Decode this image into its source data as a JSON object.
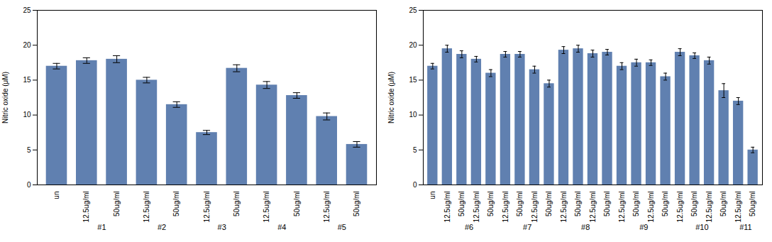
{
  "chart_data": [
    {
      "type": "bar",
      "categories": [
        "un",
        "12.5ug/ml",
        "50ug/ml",
        "12.5ug/ml",
        "50ug/ml",
        "12.5ug/ml",
        "50ug/ml",
        "12.5ug/ml",
        "50ug/ml",
        "12.5ug/ml",
        "50ug/ml"
      ],
      "values": [
        17.0,
        17.8,
        18.0,
        15.0,
        11.5,
        7.5,
        16.7,
        14.3,
        12.8,
        9.8,
        5.8
      ],
      "errors": [
        0.4,
        0.4,
        0.5,
        0.4,
        0.4,
        0.3,
        0.5,
        0.5,
        0.4,
        0.5,
        0.4
      ],
      "groups": [
        {
          "name": "#1",
          "start": 1,
          "end": 2
        },
        {
          "name": "#2",
          "start": 3,
          "end": 4
        },
        {
          "name": "#3",
          "start": 5,
          "end": 6
        },
        {
          "name": "#4",
          "start": 7,
          "end": 8
        },
        {
          "name": "#5",
          "start": 9,
          "end": 10
        }
      ],
      "ylabel": "Nitric oxide (μM)",
      "ylim": [
        0,
        25
      ],
      "yticks": [
        0,
        5,
        10,
        15,
        20,
        25
      ],
      "color": "#6080b0",
      "grid": false
    },
    {
      "type": "bar",
      "categories": [
        "un",
        "12.5ug/ml",
        "50ug/ml",
        "12.5ug/ml",
        "50ug/ml",
        "12.5ug/ml",
        "50ug/ml",
        "12.5ug/ml",
        "50ug/ml",
        "12.5ug/ml",
        "50ug/ml",
        "12.5ug/ml",
        "50ug/ml",
        "12.5ug/ml",
        "50ug/ml",
        "12.5ug/ml",
        "50ug/ml",
        "12.5ug/ml",
        "50ug/ml",
        "12.5ug/ml",
        "50ug/ml",
        "12.5ug/ml",
        "50ug/ml"
      ],
      "values": [
        17.0,
        19.5,
        18.7,
        18.0,
        16.0,
        18.7,
        18.7,
        16.5,
        14.5,
        19.3,
        19.5,
        18.8,
        19.0,
        17.0,
        17.5,
        17.5,
        15.5,
        19.0,
        18.5,
        17.8,
        13.5,
        12.0,
        5.0
      ],
      "errors": [
        0.4,
        0.5,
        0.5,
        0.4,
        0.5,
        0.4,
        0.4,
        0.5,
        0.5,
        0.5,
        0.5,
        0.5,
        0.4,
        0.5,
        0.5,
        0.4,
        0.5,
        0.5,
        0.4,
        0.5,
        1.0,
        0.5,
        0.4
      ],
      "groups": [
        {
          "name": "#6",
          "start": 1,
          "end": 4
        },
        {
          "name": "#7",
          "start": 5,
          "end": 8
        },
        {
          "name": "#8",
          "start": 9,
          "end": 12
        },
        {
          "name": "#9",
          "start": 13,
          "end": 16
        },
        {
          "name": "#10",
          "start": 17,
          "end": 20
        },
        {
          "name": "#11",
          "start": 21,
          "end": 22
        }
      ],
      "ylabel": "Nitric oxide (μM)",
      "ylim": [
        0,
        25
      ],
      "yticks": [
        0,
        5,
        10,
        15,
        20,
        25
      ],
      "color": "#6080b0",
      "grid": false
    }
  ]
}
